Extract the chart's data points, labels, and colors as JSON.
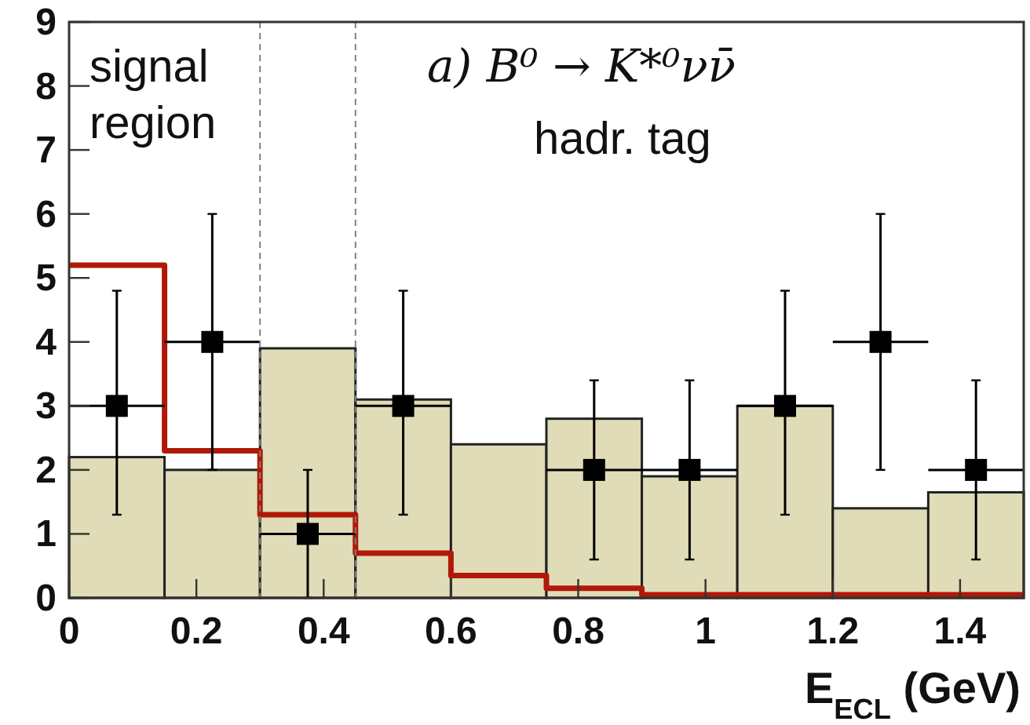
{
  "chart_data": {
    "type": "histogram",
    "xlabel": "E$_{ECL}$ (GeV)",
    "annotations": [
      "signal region",
      "a) B⁰ → K*⁰νν̄",
      "hadr. tag"
    ],
    "bins": [
      0,
      0.15,
      0.3,
      0.45,
      0.6,
      0.75,
      0.9,
      1.05,
      1.2,
      1.35,
      1.5
    ],
    "series": [
      {
        "color": "#e0dcb8",
        "values": [
          2.2,
          2.0,
          3.9,
          3.1,
          2.4,
          2.8,
          1.9,
          3.0,
          1.4,
          1.65
        ]
      },
      {
        "type": "histogram",
        "line_style": "solid",
        "color": "#b01808",
        "values": [
          5.2,
          2.3,
          1.3,
          0.7,
          0.35,
          0.15,
          0.05,
          0.05,
          0.05,
          0.05
        ]
      },
      {
        "type": "scatter",
        "color": "#000000",
        "marker": "square",
        "x": [
          0.075,
          0.225,
          0.375,
          0.525,
          0.825,
          0.975,
          1.125,
          1.275,
          1.425
        ],
        "values": [
          3,
          4,
          1,
          3,
          2,
          2,
          3,
          4,
          2
        ],
        "errors": [
          [
            1.3,
            4.8
          ],
          [
            2,
            6
          ],
          [
            0,
            2
          ],
          [
            1.3,
            4.8
          ],
          [
            0.6,
            3.4
          ],
          [
            0.6,
            3.4
          ],
          [
            1.3,
            4.8
          ],
          [
            2,
            6
          ],
          [
            0.6,
            3.4
          ]
        ],
        "xerrors": [
          0.075,
          0.075,
          0.075,
          0.075,
          0.075,
          0.075,
          0.075,
          0.075,
          0.075
        ]
      }
    ],
    "ref_lines": [
      {
        "axis": "x",
        "value": 0.3,
        "color": "#808080",
        "line_style": "dashed"
      },
      {
        "axis": "x",
        "value": 0.45,
        "color": "#808080",
        "line_style": "dashed"
      }
    ],
    "xlim": [
      0,
      1.5
    ],
    "ylim": [
      0,
      9
    ],
    "xticks": [
      0,
      0.2,
      0.4,
      0.6,
      0.8,
      1,
      1.2,
      1.4
    ],
    "yticks": [
      0,
      1,
      2,
      3,
      4,
      5,
      6,
      7,
      8,
      9
    ],
    "grid": false
  }
}
